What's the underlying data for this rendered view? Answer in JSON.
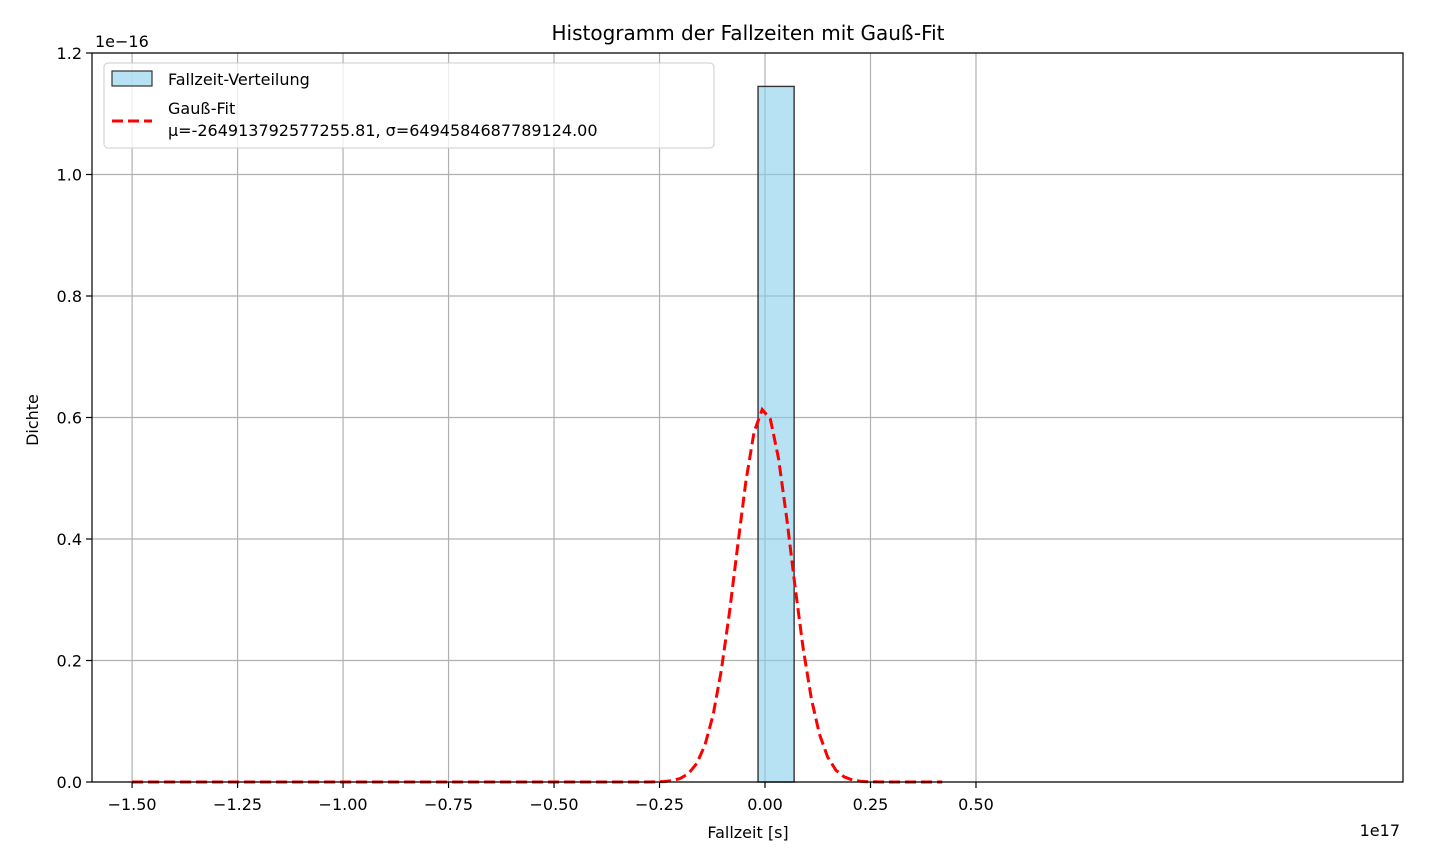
{
  "chart_data": {
    "type": "histogram",
    "title": "Histogramm der Fallzeiten mit Gauß-Fit",
    "xlabel": "Fallzeit [s]",
    "ylabel": "Dichte",
    "x_offset_label": "1e17",
    "y_offset_label": "1e−16",
    "x_scale": 1e+17,
    "y_scale": 1e-16,
    "xlim": [
      -1.595,
      1.512
    ],
    "ylim": [
      0,
      1.2
    ],
    "x_ticks": [
      -1.5,
      -1.25,
      -1.0,
      -0.75,
      -0.5,
      -0.25,
      0.0,
      0.25,
      0.5
    ],
    "x_tick_labels": [
      "−1.50",
      "−1.25",
      "−1.00",
      "−0.75",
      "−0.50",
      "−0.25",
      "0.00",
      "0.25",
      "0.50"
    ],
    "y_ticks": [
      0,
      0.2,
      0.4,
      0.6,
      0.8,
      1.0,
      1.2
    ],
    "y_tick_labels": [
      "0.0",
      "0.2",
      "0.4",
      "0.6",
      "0.8",
      "1.0",
      "1.2"
    ],
    "grid": true,
    "legend_position": "top-left",
    "bars": [
      {
        "x0": -0.0165,
        "x1": 0.069,
        "density": 1.145
      }
    ],
    "gauss_fit": {
      "mu": -0.00264913792577,
      "sigma": 0.064945846877,
      "x_range": [
        -1.5,
        0.42
      ]
    },
    "series": [
      {
        "name": "Fallzeit-Verteilung",
        "kind": "bar",
        "color": "#87ceeb",
        "edge_color": "#333333"
      },
      {
        "name": "Gauß-Fit",
        "name_line2": "μ=-264913792577255.81, σ=6494584687789124.00",
        "kind": "line",
        "color": "#ff0000",
        "dash": "dashed"
      }
    ]
  }
}
